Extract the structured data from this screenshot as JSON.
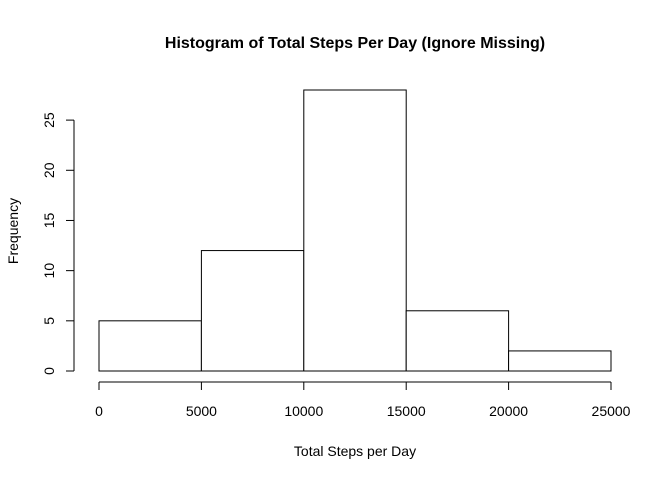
{
  "chart_data": {
    "type": "bar",
    "title": "Histogram of Total Steps Per Day (Ignore Missing)",
    "xlabel": "Total Steps per Day",
    "ylabel": "Frequency",
    "bins": [
      {
        "from": 0,
        "to": 5000,
        "count": 5
      },
      {
        "from": 5000,
        "to": 10000,
        "count": 12
      },
      {
        "from": 10000,
        "to": 15000,
        "count": 28
      },
      {
        "from": 15000,
        "to": 20000,
        "count": 6
      },
      {
        "from": 20000,
        "to": 25000,
        "count": 2
      }
    ],
    "xlim": [
      0,
      25000
    ],
    "ylim": [
      0,
      28
    ],
    "x_ticks": [
      0,
      5000,
      10000,
      15000,
      20000,
      25000
    ],
    "x_tick_labels": [
      "0",
      "5000",
      "10000",
      "15000",
      "20000",
      "25000"
    ],
    "y_ticks": [
      0,
      5,
      10,
      15,
      20,
      25
    ],
    "y_tick_labels": [
      "0",
      "5",
      "10",
      "15",
      "20",
      "25"
    ],
    "grid": false,
    "bar_fill": "#ffffff",
    "bar_stroke": "#000000"
  }
}
